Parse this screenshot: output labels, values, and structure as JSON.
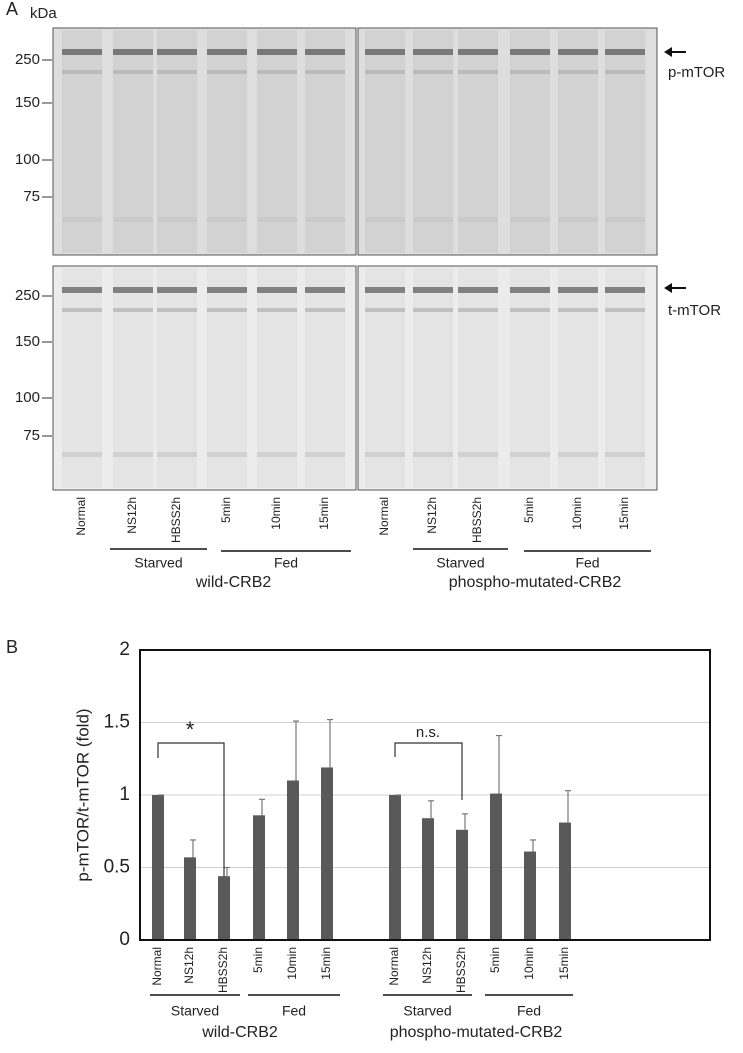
{
  "panel_a": {
    "label": "A",
    "unit": "kDa",
    "markers": [
      250,
      150,
      100,
      75
    ],
    "proteins": [
      "p-mTOR",
      "t-mTOR"
    ],
    "lanes": [
      "Normal",
      "NS12h",
      "HBSS2h",
      "5min",
      "10min",
      "15min"
    ],
    "groups": [
      "Starved",
      "Fed"
    ],
    "cell_lines": [
      "wild-CRB2",
      "phospho-mutated-CRB2"
    ]
  },
  "chart_data": {
    "type": "bar",
    "label": "B",
    "ylabel": "p-mTOR/t-mTOR (fold)",
    "categories": [
      "Normal",
      "NS12h",
      "HBSS2h",
      "5min",
      "10min",
      "15min",
      "Normal",
      "NS12h",
      "HBSS2h",
      "5min",
      "10min",
      "15min"
    ],
    "values": [
      1.0,
      0.57,
      0.44,
      0.86,
      1.1,
      1.19,
      1.0,
      0.84,
      0.76,
      1.01,
      0.61,
      0.81
    ],
    "errors": [
      0,
      0.12,
      0.06,
      0.11,
      0.41,
      0.33,
      0,
      0.12,
      0.11,
      0.4,
      0.08,
      0.22
    ],
    "color": "#595959",
    "ylim": [
      0,
      2
    ],
    "yticks": [
      0,
      0.5,
      1,
      1.5,
      2
    ],
    "grid": true,
    "groups": [
      "Starved",
      "Fed"
    ],
    "cell_lines": [
      "wild-CRB2",
      "phospho-mutated-CRB2"
    ],
    "annotations": [
      "*",
      "n.s."
    ]
  }
}
